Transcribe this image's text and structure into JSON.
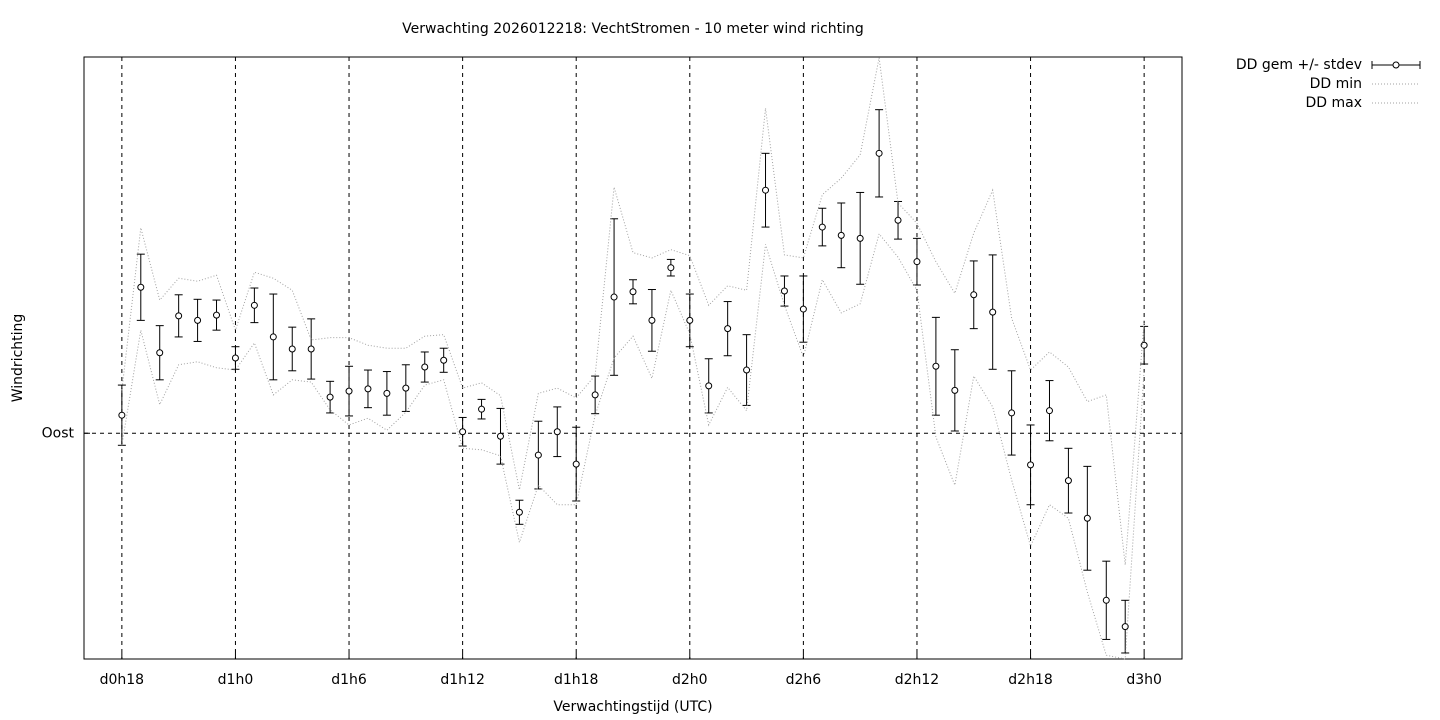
{
  "chart_data": {
    "type": "errorbar",
    "title": "Verwachting 2026012218: VechtStromen - 10 meter wind richting",
    "xlabel": "Verwachtingstijd (UTC)",
    "ylabel": "Windrichting",
    "x": [
      18,
      19,
      20,
      21,
      22,
      23,
      24,
      25,
      26,
      27,
      28,
      29,
      30,
      31,
      32,
      33,
      34,
      35,
      36,
      37,
      38,
      39,
      40,
      41,
      42,
      43,
      44,
      45,
      46,
      47,
      48,
      49,
      50,
      51,
      52,
      53,
      54,
      55,
      56,
      57,
      58,
      59,
      60,
      61,
      62,
      63,
      64,
      65,
      66,
      67,
      68,
      69,
      70,
      71,
      72
    ],
    "series": [
      {
        "name": "DD gem +/- stdev",
        "color": "#000000",
        "values": [
          92.4,
          109.4,
          100.7,
          105.6,
          105.0,
          105.7,
          100.0,
          107.0,
          102.8,
          101.2,
          101.2,
          94.8,
          95.6,
          95.9,
          95.3,
          96.0,
          98.8,
          99.7,
          90.2,
          93.2,
          89.6,
          79.5,
          87.1,
          90.2,
          85.9,
          95.1,
          108.1,
          108.8,
          105.0,
          112.0,
          105.0,
          96.3,
          103.9,
          98.4,
          122.3,
          108.9,
          106.5,
          117.4,
          116.3,
          115.9,
          127.2,
          118.3,
          112.8,
          98.9,
          95.7,
          108.4,
          106.1,
          92.7,
          85.8,
          93.0,
          83.7,
          78.7,
          67.8,
          64.3,
          101.7
        ],
        "errors": [
          4.0,
          4.4,
          3.6,
          2.8,
          2.8,
          2.0,
          1.5,
          2.3,
          5.7,
          2.9,
          4.0,
          2.1,
          3.3,
          2.5,
          2.9,
          3.1,
          2.0,
          1.6,
          1.9,
          1.3,
          3.7,
          1.6,
          4.5,
          3.3,
          4.9,
          2.5,
          10.4,
          1.6,
          4.1,
          1.1,
          3.5,
          3.6,
          3.6,
          4.7,
          4.9,
          2.0,
          4.4,
          2.5,
          4.3,
          6.1,
          5.8,
          2.5,
          3.1,
          6.5,
          5.4,
          4.5,
          7.6,
          5.6,
          5.3,
          4.0,
          4.3,
          6.9,
          5.2,
          3.5,
          2.5
        ]
      },
      {
        "name": "DD min",
        "color": "#a0a0a0",
        "values": [
          88.4,
          103.7,
          93.8,
          99.1,
          99.5,
          98.7,
          98.4,
          102.0,
          95.1,
          97.1,
          96.8,
          93.1,
          91.1,
          92.0,
          90.4,
          92.8,
          96.4,
          97.1,
          88.0,
          87.8,
          87.0,
          75.5,
          83.1,
          80.5,
          80.5,
          92.4,
          100.0,
          102.9,
          97.3,
          109.0,
          103.2,
          91.1,
          96.1,
          93.0,
          115.1,
          107.0,
          100.1,
          110.4,
          106.0,
          107.2,
          116.5,
          113.4,
          109.0,
          89.5,
          83.1,
          97.6,
          93.5,
          83.8,
          75.0,
          80.5,
          78.7,
          68.9,
          60.5,
          60.0,
          98.4
        ]
      },
      {
        "name": "DD max",
        "color": "#a0a0a0",
        "values": [
          95.7,
          117.3,
          107.7,
          110.6,
          110.2,
          111.0,
          103.7,
          111.4,
          110.6,
          109.0,
          102.4,
          102.7,
          102.7,
          101.7,
          101.3,
          101.3,
          102.9,
          103.1,
          96.0,
          96.7,
          95.0,
          82.5,
          95.3,
          96.0,
          94.7,
          97.7,
          122.7,
          114.0,
          113.3,
          114.4,
          113.6,
          107.0,
          109.6,
          109.0,
          133.2,
          113.7,
          113.3,
          121.7,
          123.9,
          127.0,
          139.9,
          120.6,
          117.9,
          112.8,
          108.6,
          116.6,
          122.3,
          105.3,
          98.4,
          100.8,
          98.8,
          94.2,
          95.1,
          72.5,
          105.0
        ]
      }
    ],
    "xlim": [
      16,
      74
    ],
    "xticks": [
      {
        "value": 18,
        "label": "d0h18"
      },
      {
        "value": 24,
        "label": "d1h0"
      },
      {
        "value": 30,
        "label": "d1h6"
      },
      {
        "value": 36,
        "label": "d1h12"
      },
      {
        "value": 42,
        "label": "d1h18"
      },
      {
        "value": 48,
        "label": "d2h0"
      },
      {
        "value": 54,
        "label": "d2h6"
      },
      {
        "value": 60,
        "label": "d2h12"
      },
      {
        "value": 66,
        "label": "d2h18"
      },
      {
        "value": 72,
        "label": "d3h0"
      }
    ],
    "ylim": [
      60,
      140
    ],
    "yticks": [
      {
        "value": 90,
        "label": "Oost"
      }
    ],
    "grid": true,
    "legend": "outside-top-right"
  }
}
